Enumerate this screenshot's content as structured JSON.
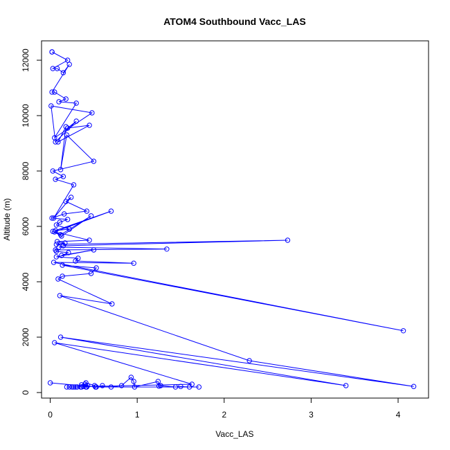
{
  "chart_data": {
    "type": "line",
    "title": "ATOM4 Southbound Vacc_LAS",
    "xlabel": "Vacc_LAS",
    "ylabel": "Altitude (m)",
    "xlim": [
      -0.1,
      4.35
    ],
    "ylim": [
      -200,
      12700
    ],
    "x_ticks": [
      0,
      1,
      2,
      3,
      4
    ],
    "x_tick_labels": [
      "0",
      "1",
      "2",
      "3",
      "4"
    ],
    "y_ticks": [
      0,
      2000,
      4000,
      6000,
      8000,
      10000,
      12000
    ],
    "y_tick_labels": [
      "0",
      "2000",
      "4000",
      "6000",
      "8000",
      "10000",
      "12000"
    ],
    "grid": false,
    "legend": "none",
    "series": [
      {
        "color": "#0000ff",
        "marker": "open-circle",
        "x": [
          0.02,
          0.02,
          0.2,
          0.03,
          0.08,
          0.15,
          0.22,
          0.02,
          0.05,
          0.18,
          0.1,
          0.3,
          0.05,
          0.48,
          0.01,
          0.06,
          0.3,
          0.2,
          0.45,
          0.09,
          0.18,
          0.12,
          0.19,
          0.5,
          0.03,
          0.15,
          0.06,
          0.27,
          0.04,
          0.24,
          0.18,
          0.42,
          0.16,
          0.02,
          0.2,
          0.11,
          0.07,
          0.22,
          0.06,
          0.7,
          0.05,
          0.12,
          0.47,
          0.13,
          0.03,
          0.45,
          0.08,
          0.17,
          0.07,
          2.73,
          0.15,
          0.1,
          1.34,
          0.06,
          0.07,
          0.21,
          0.13,
          0.5,
          0.07,
          0.32,
          0.29,
          0.96,
          0.04,
          4.06,
          0.14,
          0.53,
          0.47,
          0.14,
          0.09,
          0.71,
          0.11,
          2.29,
          4.18,
          0.12,
          3.4,
          0.05,
          1.63,
          0.22,
          0.35,
          0.25,
          0.19,
          0.29,
          0.31,
          0.27,
          0.36,
          0.41,
          0.42,
          0.38,
          0.43,
          0.36,
          0.4,
          0.41,
          0.51,
          0.52,
          0.6,
          0.7,
          0.82,
          0.93,
          0.96,
          0.97,
          1.24,
          1.25,
          1.27,
          1.44,
          1.5,
          1.6,
          1.71,
          0.53,
          0.0
        ],
        "y": [
          12300,
          12300,
          12000,
          11700,
          11700,
          11550,
          11850,
          10850,
          10850,
          10600,
          10500,
          10450,
          9200,
          10100,
          10350,
          9050,
          9800,
          9550,
          9650,
          9050,
          9600,
          8050,
          9300,
          8350,
          8000,
          7800,
          7700,
          7500,
          6300,
          7050,
          6900,
          6550,
          6450,
          6300,
          6250,
          6150,
          6050,
          5900,
          5850,
          6550,
          5800,
          5700,
          6380,
          5650,
          5820,
          5500,
          5450,
          5400,
          5350,
          5500,
          5300,
          5250,
          5180,
          5150,
          5100,
          5050,
          4950,
          5150,
          4900,
          4850,
          4750,
          4670,
          4700,
          2230,
          4600,
          4500,
          4300,
          4200,
          4100,
          3200,
          3500,
          1150,
          220,
          2000,
          250,
          1800,
          300,
          200,
          200,
          200,
          200,
          200,
          200,
          200,
          200,
          200,
          200,
          220,
          250,
          280,
          300,
          350,
          250,
          200,
          250,
          200,
          250,
          550,
          400,
          200,
          400,
          230,
          250,
          200,
          220,
          200,
          200,
          200,
          350
        ]
      }
    ]
  }
}
